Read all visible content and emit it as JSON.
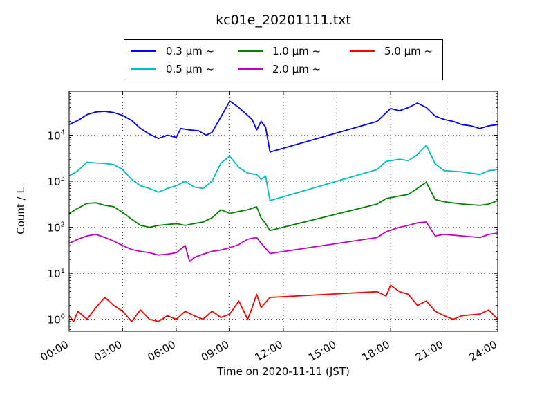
{
  "chart_data": {
    "type": "line",
    "title": "kc01e_20201111.txt",
    "xlabel": "Time on 2020-11-11 (JST)",
    "ylabel": "Count / L",
    "yscale": "log",
    "ylim": [
      0.55,
      90000
    ],
    "xlim": [
      "00:00",
      "24:00"
    ],
    "x_ticks": [
      "00:00",
      "03:00",
      "06:00",
      "09:00",
      "12:00",
      "15:00",
      "18:00",
      "21:00",
      "24:00"
    ],
    "y_ticks": [
      {
        "base": "10",
        "exp": "0"
      },
      {
        "base": "10",
        "exp": "1"
      },
      {
        "base": "10",
        "exp": "2"
      },
      {
        "base": "10",
        "exp": "3"
      },
      {
        "base": "10",
        "exp": "4"
      }
    ],
    "grid": true,
    "legend_position": "top-center",
    "series": [
      {
        "name": "0.3 μm ~",
        "color": "#0000ff",
        "points": [
          [
            "00:00",
            17000
          ],
          [
            "00:30",
            21000
          ],
          [
            "01:00",
            28000
          ],
          [
            "01:30",
            32000
          ],
          [
            "02:00",
            33000
          ],
          [
            "02:30",
            31000
          ],
          [
            "03:00",
            27000
          ],
          [
            "03:30",
            21000
          ],
          [
            "04:00",
            14000
          ],
          [
            "04:30",
            10500
          ],
          [
            "05:00",
            8500
          ],
          [
            "05:30",
            10000
          ],
          [
            "06:00",
            9000
          ],
          [
            "06:15",
            14000
          ],
          [
            "06:45",
            13000
          ],
          [
            "07:15",
            12500
          ],
          [
            "07:40",
            10000
          ],
          [
            "08:00",
            11500
          ],
          [
            "08:30",
            25000
          ],
          [
            "09:00",
            55000
          ],
          [
            "09:30",
            40000
          ],
          [
            "10:00",
            27000
          ],
          [
            "10:15",
            22000
          ],
          [
            "10:30",
            13000
          ],
          [
            "10:45",
            20000
          ],
          [
            "11:00",
            15000
          ],
          [
            "11:15",
            4300
          ],
          [
            "17:15",
            20000
          ],
          [
            "18:00",
            38000
          ],
          [
            "18:30",
            34000
          ],
          [
            "19:00",
            40000
          ],
          [
            "19:30",
            50000
          ],
          [
            "20:00",
            40000
          ],
          [
            "20:30",
            26000
          ],
          [
            "21:00",
            22000
          ],
          [
            "21:30",
            20000
          ],
          [
            "22:00",
            17000
          ],
          [
            "22:30",
            16000
          ],
          [
            "23:00",
            14000
          ],
          [
            "23:30",
            16000
          ],
          [
            "24:00",
            17000
          ]
        ]
      },
      {
        "name": "0.5 μm ~",
        "color": "#00bfbf",
        "points": [
          [
            "00:00",
            1300
          ],
          [
            "00:30",
            1700
          ],
          [
            "01:00",
            2600
          ],
          [
            "01:30",
            2500
          ],
          [
            "02:00",
            2450
          ],
          [
            "02:30",
            2300
          ],
          [
            "03:00",
            1800
          ],
          [
            "03:30",
            1100
          ],
          [
            "04:00",
            800
          ],
          [
            "04:30",
            700
          ],
          [
            "05:00",
            580
          ],
          [
            "05:30",
            700
          ],
          [
            "06:00",
            800
          ],
          [
            "06:30",
            1000
          ],
          [
            "07:00",
            750
          ],
          [
            "07:30",
            700
          ],
          [
            "08:00",
            1000
          ],
          [
            "08:30",
            2500
          ],
          [
            "09:00",
            3500
          ],
          [
            "09:30",
            2000
          ],
          [
            "10:00",
            1500
          ],
          [
            "10:30",
            1400
          ],
          [
            "10:45",
            1100
          ],
          [
            "11:00",
            1300
          ],
          [
            "11:15",
            380
          ],
          [
            "17:15",
            1800
          ],
          [
            "17:45",
            2700
          ],
          [
            "18:30",
            3000
          ],
          [
            "19:00",
            2800
          ],
          [
            "19:30",
            3800
          ],
          [
            "20:00",
            6000
          ],
          [
            "20:30",
            2400
          ],
          [
            "21:00",
            1700
          ],
          [
            "22:00",
            1600
          ],
          [
            "23:00",
            1400
          ],
          [
            "23:30",
            1700
          ],
          [
            "24:00",
            1800
          ]
        ]
      },
      {
        "name": "1.0 μm ~",
        "color": "#008000",
        "points": [
          [
            "00:00",
            200
          ],
          [
            "00:30",
            260
          ],
          [
            "01:00",
            330
          ],
          [
            "01:30",
            340
          ],
          [
            "02:00",
            300
          ],
          [
            "02:30",
            280
          ],
          [
            "03:00",
            210
          ],
          [
            "03:30",
            150
          ],
          [
            "04:00",
            110
          ],
          [
            "04:30",
            100
          ],
          [
            "05:00",
            110
          ],
          [
            "05:30",
            115
          ],
          [
            "06:00",
            120
          ],
          [
            "06:30",
            110
          ],
          [
            "07:00",
            120
          ],
          [
            "07:30",
            130
          ],
          [
            "08:00",
            160
          ],
          [
            "08:30",
            240
          ],
          [
            "09:00",
            200
          ],
          [
            "09:30",
            220
          ],
          [
            "10:00",
            240
          ],
          [
            "10:30",
            280
          ],
          [
            "10:45",
            160
          ],
          [
            "11:00",
            120
          ],
          [
            "11:15",
            85
          ],
          [
            "17:15",
            320
          ],
          [
            "17:45",
            420
          ],
          [
            "18:30",
            480
          ],
          [
            "19:00",
            520
          ],
          [
            "19:30",
            700
          ],
          [
            "20:00",
            950
          ],
          [
            "20:30",
            400
          ],
          [
            "21:00",
            360
          ],
          [
            "22:00",
            320
          ],
          [
            "23:00",
            300
          ],
          [
            "23:30",
            320
          ],
          [
            "24:00",
            380
          ]
        ]
      },
      {
        "name": "2.0 μm ~",
        "color": "#bf00bf",
        "points": [
          [
            "00:00",
            45
          ],
          [
            "00:30",
            55
          ],
          [
            "01:00",
            65
          ],
          [
            "01:30",
            70
          ],
          [
            "02:00",
            60
          ],
          [
            "02:30",
            50
          ],
          [
            "03:00",
            40
          ],
          [
            "03:30",
            33
          ],
          [
            "04:00",
            30
          ],
          [
            "04:30",
            28
          ],
          [
            "05:00",
            25
          ],
          [
            "05:30",
            26
          ],
          [
            "06:00",
            28
          ],
          [
            "06:30",
            40
          ],
          [
            "06:45",
            18
          ],
          [
            "07:00",
            22
          ],
          [
            "07:30",
            26
          ],
          [
            "08:00",
            30
          ],
          [
            "08:30",
            32
          ],
          [
            "09:00",
            36
          ],
          [
            "09:30",
            42
          ],
          [
            "10:00",
            55
          ],
          [
            "10:30",
            60
          ],
          [
            "10:45",
            45
          ],
          [
            "11:00",
            35
          ],
          [
            "11:15",
            27
          ],
          [
            "17:15",
            60
          ],
          [
            "17:45",
            80
          ],
          [
            "18:30",
            100
          ],
          [
            "19:00",
            110
          ],
          [
            "19:30",
            125
          ],
          [
            "20:00",
            130
          ],
          [
            "20:30",
            65
          ],
          [
            "21:00",
            70
          ],
          [
            "22:00",
            65
          ],
          [
            "23:00",
            60
          ],
          [
            "23:30",
            70
          ],
          [
            "24:00",
            75
          ]
        ]
      },
      {
        "name": "5.0 μm ~",
        "color": "#ff0000",
        "points": [
          [
            "00:00",
            1.2
          ],
          [
            "00:15",
            0.9
          ],
          [
            "00:30",
            1.5
          ],
          [
            "01:00",
            1.0
          ],
          [
            "01:30",
            1.8
          ],
          [
            "02:00",
            3.0
          ],
          [
            "02:30",
            2.0
          ],
          [
            "03:00",
            1.5
          ],
          [
            "03:30",
            0.9
          ],
          [
            "04:00",
            1.6
          ],
          [
            "04:30",
            1.0
          ],
          [
            "05:00",
            0.9
          ],
          [
            "05:30",
            1.2
          ],
          [
            "06:00",
            1.0
          ],
          [
            "06:30",
            1.5
          ],
          [
            "07:00",
            1.2
          ],
          [
            "07:30",
            1.0
          ],
          [
            "08:00",
            1.5
          ],
          [
            "08:30",
            1.1
          ],
          [
            "09:00",
            1.3
          ],
          [
            "09:30",
            2.5
          ],
          [
            "10:00",
            1.0
          ],
          [
            "10:15",
            1.8
          ],
          [
            "10:30",
            3.5
          ],
          [
            "10:45",
            1.8
          ],
          [
            "11:15",
            3.0
          ],
          [
            "17:15",
            4.0
          ],
          [
            "17:45",
            3.2
          ],
          [
            "18:00",
            5.5
          ],
          [
            "18:30",
            4.0
          ],
          [
            "19:00",
            3.5
          ],
          [
            "19:30",
            2.0
          ],
          [
            "20:00",
            2.5
          ],
          [
            "20:30",
            1.5
          ],
          [
            "21:00",
            1.2
          ],
          [
            "21:30",
            1.0
          ],
          [
            "22:00",
            1.2
          ],
          [
            "23:00",
            1.3
          ],
          [
            "23:30",
            1.6
          ],
          [
            "24:00",
            1.0
          ]
        ]
      }
    ]
  }
}
